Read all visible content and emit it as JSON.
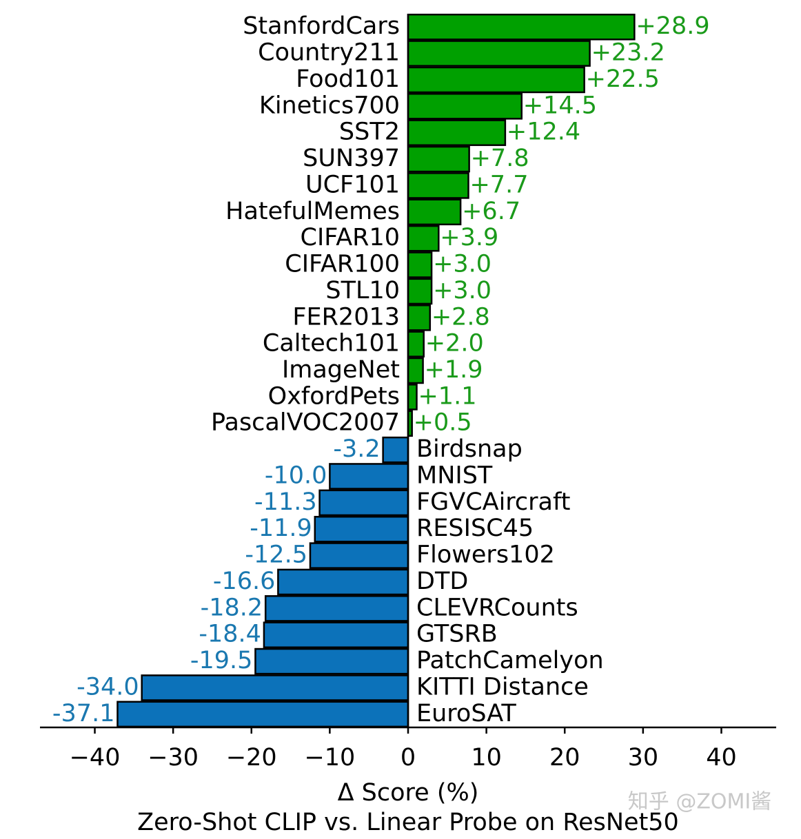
{
  "chart_data": {
    "type": "barh",
    "title": "Zero-Shot CLIP vs. Linear Probe on ResNet50",
    "xlabel": "Δ Score (%)",
    "watermark": "知乎 @ZOMI酱",
    "categories": [
      "StanfordCars",
      "Country211",
      "Food101",
      "Kinetics700",
      "SST2",
      "SUN397",
      "UCF101",
      "HatefulMemes",
      "CIFAR10",
      "CIFAR100",
      "STL10",
      "FER2013",
      "Caltech101",
      "ImageNet",
      "OxfordPets",
      "PascalVOC2007",
      "Birdsnap",
      "MNIST",
      "FGVCAircraft",
      "RESISC45",
      "Flowers102",
      "DTD",
      "CLEVRCounts",
      "GTSRB",
      "PatchCamelyon",
      "KITTI Distance",
      "EuroSAT"
    ],
    "values": [
      28.9,
      23.2,
      22.5,
      14.5,
      12.4,
      7.8,
      7.7,
      6.7,
      3.9,
      3.0,
      3.0,
      2.8,
      2.0,
      1.9,
      1.1,
      0.5,
      -3.2,
      -10.0,
      -11.3,
      -11.9,
      -12.5,
      -16.6,
      -18.2,
      -18.4,
      -19.5,
      -34.0,
      -37.1
    ],
    "value_labels": [
      "+28.9",
      "+23.2",
      "+22.5",
      "+14.5",
      "+12.4",
      "+7.8",
      "+7.7",
      "+6.7",
      "+3.9",
      "+3.0",
      "+3.0",
      "+2.8",
      "+2.0",
      "+1.9",
      "+1.1",
      "+0.5",
      "-3.2",
      "-10.0",
      "-11.3",
      "-11.9",
      "-12.5",
      "-16.6",
      "-18.2",
      "-18.4",
      "-19.5",
      "-34.0",
      "-37.1"
    ],
    "positive_color": "#00a000",
    "negative_color": "#0c72ba",
    "positive_label_color": "#1a9a1a",
    "negative_label_color": "#1a78b0",
    "xlim": [
      -47,
      47
    ],
    "xticks": [
      {
        "value": -40,
        "label": "−40"
      },
      {
        "value": -30,
        "label": "−30"
      },
      {
        "value": -20,
        "label": "−20"
      },
      {
        "value": -10,
        "label": "−10"
      },
      0,
      10,
      20,
      30,
      40
    ]
  }
}
